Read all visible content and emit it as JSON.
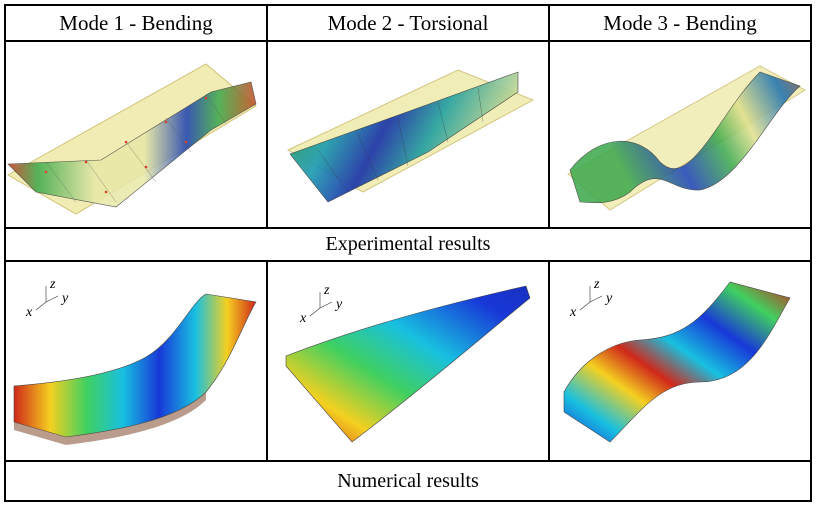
{
  "columns": [
    {
      "header": "Mode 1 - Bending"
    },
    {
      "header": "Mode 2 - Torsional"
    },
    {
      "header": "Mode 3 - Bending"
    }
  ],
  "rows": {
    "experimental_caption": "Experimental results",
    "numerical_caption": "Numerical results"
  },
  "axes_triad": {
    "x": "x",
    "y": "y",
    "z": "z"
  }
}
